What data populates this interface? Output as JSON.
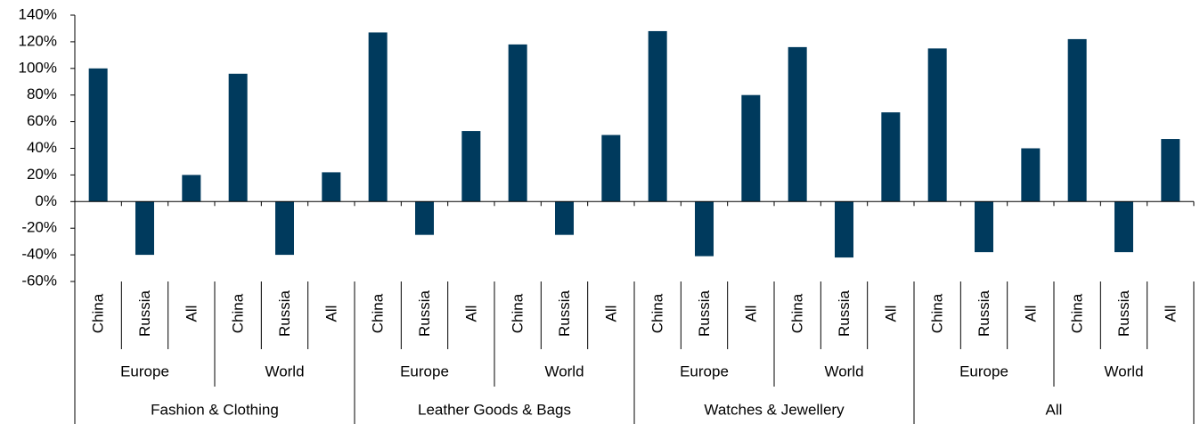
{
  "chart_data": {
    "type": "bar",
    "categories": [
      "China",
      "Russia",
      "All",
      "China",
      "Russia",
      "All",
      "China",
      "Russia",
      "All",
      "China",
      "Russia",
      "All",
      "China",
      "Russia",
      "All",
      "China",
      "Russia",
      "All",
      "China",
      "Russia",
      "All",
      "China",
      "Russia",
      "All"
    ],
    "subgroups": [
      "Europe",
      "World",
      "Europe",
      "World",
      "Europe",
      "World",
      "Europe",
      "World"
    ],
    "groups": [
      "Fashion & Clothing",
      "Leather Goods & Bags",
      "Watches & Jewellery",
      "All"
    ],
    "values": [
      100,
      -40,
      20,
      96,
      -40,
      22,
      127,
      -25,
      53,
      118,
      -25,
      50,
      128,
      -41,
      80,
      116,
      -42,
      67,
      115,
      -38,
      40,
      122,
      -38,
      47
    ],
    "color": "#003a5d",
    "ylim": [
      -60,
      140
    ],
    "yticks": [
      {
        "value": -60,
        "label": "-60%"
      },
      {
        "value": -40,
        "label": "-40%"
      },
      {
        "value": -20,
        "label": "-20%"
      },
      {
        "value": 0,
        "label": "0%"
      },
      {
        "value": 20,
        "label": "20%"
      },
      {
        "value": 40,
        "label": "40%"
      },
      {
        "value": 60,
        "label": "60%"
      },
      {
        "value": 80,
        "label": "80%"
      },
      {
        "value": 100,
        "label": "100%"
      },
      {
        "value": 120,
        "label": "120%"
      },
      {
        "value": 140,
        "label": "140%"
      }
    ]
  }
}
